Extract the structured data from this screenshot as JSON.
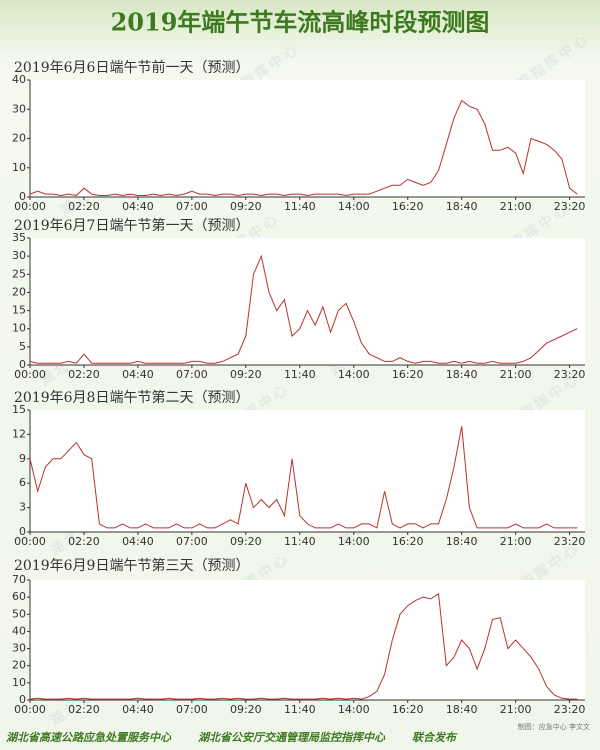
{
  "header": {
    "title": "2019年端午节车流高峰时段预测图"
  },
  "chart_data": [
    {
      "type": "line",
      "title": "2019年6月6日端午节前一天（预测）",
      "color": "#b5332a",
      "x": [
        0,
        20,
        40,
        60,
        80,
        100,
        120,
        140,
        160,
        180,
        200,
        220,
        240,
        260,
        280,
        300,
        320,
        340,
        360,
        380,
        400,
        420,
        440,
        460,
        480,
        500,
        520,
        540,
        560,
        580,
        600,
        620,
        640,
        660,
        680,
        700,
        720,
        740,
        760,
        780,
        800,
        820,
        840,
        860,
        880,
        900,
        920,
        940,
        960,
        980,
        1000,
        1020,
        1040,
        1060,
        1080,
        1100,
        1120,
        1140,
        1160,
        1180,
        1200,
        1220,
        1240,
        1260,
        1280,
        1300,
        1320,
        1340,
        1360,
        1380,
        1400,
        1420
      ],
      "values": [
        1,
        2,
        1,
        1,
        0.5,
        1,
        0.5,
        3,
        1,
        0.5,
        0.5,
        1,
        0.5,
        1,
        0.5,
        0.5,
        1,
        0.5,
        1,
        0.5,
        1,
        2,
        1,
        1,
        0.5,
        1,
        1,
        0.5,
        1,
        1,
        0.5,
        1,
        1,
        0.5,
        1,
        1,
        0.5,
        1,
        1,
        1,
        1,
        0.5,
        1,
        1,
        1,
        2,
        3,
        4,
        4,
        6,
        5,
        4,
        5,
        9,
        18,
        27,
        33,
        31,
        30,
        25,
        16,
        16,
        17,
        15,
        8,
        20,
        19,
        18,
        16,
        13,
        3,
        1
      ],
      "xlim": [
        0,
        1440
      ],
      "ylim": [
        0,
        40
      ],
      "yticks": [
        0,
        10,
        20,
        30,
        40
      ],
      "xticks": [
        {
          "value": 0,
          "label": "00:00"
        },
        {
          "value": 140,
          "label": "02:20"
        },
        {
          "value": 280,
          "label": "04:40"
        },
        {
          "value": 420,
          "label": "07:00"
        },
        {
          "value": 560,
          "label": "09:20"
        },
        {
          "value": 700,
          "label": "11:40"
        },
        {
          "value": 840,
          "label": "14:00"
        },
        {
          "value": 980,
          "label": "16:20"
        },
        {
          "value": 1120,
          "label": "18:40"
        },
        {
          "value": 1260,
          "label": "21:00"
        },
        {
          "value": 1400,
          "label": "23:20"
        }
      ],
      "grid": false
    },
    {
      "type": "line",
      "title": "2019年6月7日端午节第一天（预测）",
      "color": "#b5332a",
      "x": [
        0,
        20,
        40,
        60,
        80,
        100,
        120,
        140,
        160,
        180,
        200,
        220,
        240,
        260,
        280,
        300,
        320,
        340,
        360,
        380,
        400,
        420,
        440,
        460,
        480,
        500,
        520,
        540,
        560,
        580,
        600,
        620,
        640,
        660,
        680,
        700,
        720,
        740,
        760,
        780,
        800,
        820,
        840,
        860,
        880,
        900,
        920,
        940,
        960,
        980,
        1000,
        1020,
        1040,
        1060,
        1080,
        1100,
        1120,
        1140,
        1160,
        1180,
        1200,
        1220,
        1240,
        1260,
        1280,
        1300,
        1320,
        1340,
        1360,
        1380,
        1400,
        1420
      ],
      "values": [
        1,
        0.5,
        0.5,
        0.5,
        0.5,
        1,
        0.5,
        3,
        0.5,
        0.5,
        0.5,
        0.5,
        0.5,
        0.5,
        1,
        0.5,
        0.5,
        0.5,
        0.5,
        0.5,
        0.5,
        1,
        1,
        0.5,
        0.5,
        1,
        2,
        3,
        8,
        25,
        30,
        20,
        15,
        18,
        8,
        10,
        15,
        11,
        16,
        9,
        15,
        17,
        12,
        6,
        3,
        2,
        1,
        1,
        2,
        1,
        0.5,
        1,
        1,
        0.5,
        0.5,
        1,
        0.5,
        1,
        0.5,
        0.5,
        1,
        0.5,
        0.5,
        0.5,
        1,
        2,
        4,
        6,
        7,
        8,
        9,
        10
      ],
      "xlim": [
        0,
        1440
      ],
      "ylim": [
        0,
        35
      ],
      "yticks": [
        0,
        5,
        10,
        15,
        20,
        25,
        30,
        35
      ],
      "xticks": [
        {
          "value": 0,
          "label": "00:00"
        },
        {
          "value": 140,
          "label": "02:20"
        },
        {
          "value": 280,
          "label": "04:40"
        },
        {
          "value": 420,
          "label": "07:00"
        },
        {
          "value": 560,
          "label": "09:20"
        },
        {
          "value": 700,
          "label": "11:40"
        },
        {
          "value": 840,
          "label": "14:00"
        },
        {
          "value": 980,
          "label": "16:20"
        },
        {
          "value": 1120,
          "label": "18:40"
        },
        {
          "value": 1260,
          "label": "21:00"
        },
        {
          "value": 1400,
          "label": "23:20"
        }
      ],
      "grid": false
    },
    {
      "type": "line",
      "title": "2019年6月8日端午节第二天（预测）",
      "color": "#b5332a",
      "x": [
        0,
        20,
        40,
        60,
        80,
        100,
        120,
        140,
        160,
        180,
        200,
        220,
        240,
        260,
        280,
        300,
        320,
        340,
        360,
        380,
        400,
        420,
        440,
        460,
        480,
        500,
        520,
        540,
        560,
        580,
        600,
        620,
        640,
        660,
        680,
        700,
        720,
        740,
        760,
        780,
        800,
        820,
        840,
        860,
        880,
        900,
        920,
        940,
        960,
        980,
        1000,
        1020,
        1040,
        1060,
        1080,
        1100,
        1120,
        1140,
        1160,
        1180,
        1200,
        1220,
        1240,
        1260,
        1280,
        1300,
        1320,
        1340,
        1360,
        1380,
        1400,
        1420
      ],
      "values": [
        9,
        5,
        8,
        9,
        9,
        10,
        11,
        9.5,
        9,
        1,
        0.5,
        0.5,
        1,
        0.5,
        0.5,
        1,
        0.5,
        0.5,
        0.5,
        1,
        0.5,
        0.5,
        1,
        0.5,
        0.5,
        1,
        1.5,
        1,
        6,
        3,
        4,
        3,
        4,
        2,
        9,
        2,
        1,
        0.5,
        0.5,
        0.5,
        1,
        0.5,
        0.5,
        1,
        1,
        0.5,
        5,
        1,
        0.5,
        1,
        1,
        0.5,
        1,
        1,
        4,
        8,
        13,
        3,
        0.5,
        0.5,
        0.5,
        0.5,
        0.5,
        1,
        0.5,
        0.5,
        0.5,
        1,
        0.5,
        0.5,
        0.5,
        0.5
      ],
      "xlim": [
        0,
        1440
      ],
      "ylim": [
        0,
        15
      ],
      "yticks": [
        0,
        3,
        6,
        9,
        12,
        15
      ],
      "xticks": [
        {
          "value": 0,
          "label": "00:00"
        },
        {
          "value": 140,
          "label": "02:20"
        },
        {
          "value": 280,
          "label": "04:40"
        },
        {
          "value": 420,
          "label": "07:00"
        },
        {
          "value": 560,
          "label": "09:20"
        },
        {
          "value": 700,
          "label": "11:40"
        },
        {
          "value": 840,
          "label": "14:00"
        },
        {
          "value": 980,
          "label": "16:20"
        },
        {
          "value": 1120,
          "label": "18:40"
        },
        {
          "value": 1260,
          "label": "21:00"
        },
        {
          "value": 1400,
          "label": "23:20"
        }
      ],
      "grid": false
    },
    {
      "type": "line",
      "title": "2019年6月9日端午节第三天（预测）",
      "color": "#b5332a",
      "x": [
        0,
        20,
        40,
        60,
        80,
        100,
        120,
        140,
        160,
        180,
        200,
        220,
        240,
        260,
        280,
        300,
        320,
        340,
        360,
        380,
        400,
        420,
        440,
        460,
        480,
        500,
        520,
        540,
        560,
        580,
        600,
        620,
        640,
        660,
        680,
        700,
        720,
        740,
        760,
        780,
        800,
        820,
        840,
        860,
        880,
        900,
        920,
        940,
        960,
        980,
        1000,
        1020,
        1040,
        1060,
        1080,
        1100,
        1120,
        1140,
        1160,
        1180,
        1200,
        1220,
        1240,
        1260,
        1280,
        1300,
        1320,
        1340,
        1360,
        1380,
        1400,
        1420
      ],
      "values": [
        0.5,
        1,
        0.5,
        0.5,
        0.5,
        1,
        0.5,
        1,
        0.5,
        0.5,
        0.5,
        0.5,
        0.5,
        0.5,
        1,
        0.5,
        0.5,
        0.5,
        1,
        0.5,
        0.5,
        0.5,
        1,
        0.5,
        0.5,
        1,
        0.5,
        1,
        0.5,
        0.5,
        1,
        0.5,
        0.5,
        1,
        0.5,
        0.5,
        0.5,
        0.5,
        1,
        0.5,
        1,
        0.5,
        1,
        0.5,
        2,
        5,
        15,
        35,
        50,
        55,
        58,
        60,
        59,
        62,
        20,
        25,
        35,
        30,
        18,
        30,
        47,
        48,
        30,
        35,
        30,
        25,
        18,
        8,
        3,
        1,
        0.5,
        0.5
      ],
      "xlim": [
        0,
        1440
      ],
      "ylim": [
        0,
        70
      ],
      "yticks": [
        0,
        10,
        20,
        30,
        40,
        50,
        60,
        70
      ],
      "xticks": [
        {
          "value": 0,
          "label": "00:00"
        },
        {
          "value": 140,
          "label": "02:20"
        },
        {
          "value": 280,
          "label": "04:40"
        },
        {
          "value": 420,
          "label": "07:00"
        },
        {
          "value": 560,
          "label": "09:20"
        },
        {
          "value": 700,
          "label": "11:40"
        },
        {
          "value": 840,
          "label": "14:00"
        },
        {
          "value": 980,
          "label": "16:20"
        },
        {
          "value": 1120,
          "label": "18:40"
        },
        {
          "value": 1260,
          "label": "21:00"
        },
        {
          "value": 1400,
          "label": "23:20"
        }
      ],
      "grid": false
    }
  ],
  "watermark": "湖北省公安厅交通管理局监控指挥中心",
  "footer": {
    "org1": "湖北省高速公路应急处置服务中心",
    "org2": "湖北省公安厅交通管理局监控指挥中心",
    "note": "联合发布",
    "credit": "制图：应急中心 李文文"
  }
}
